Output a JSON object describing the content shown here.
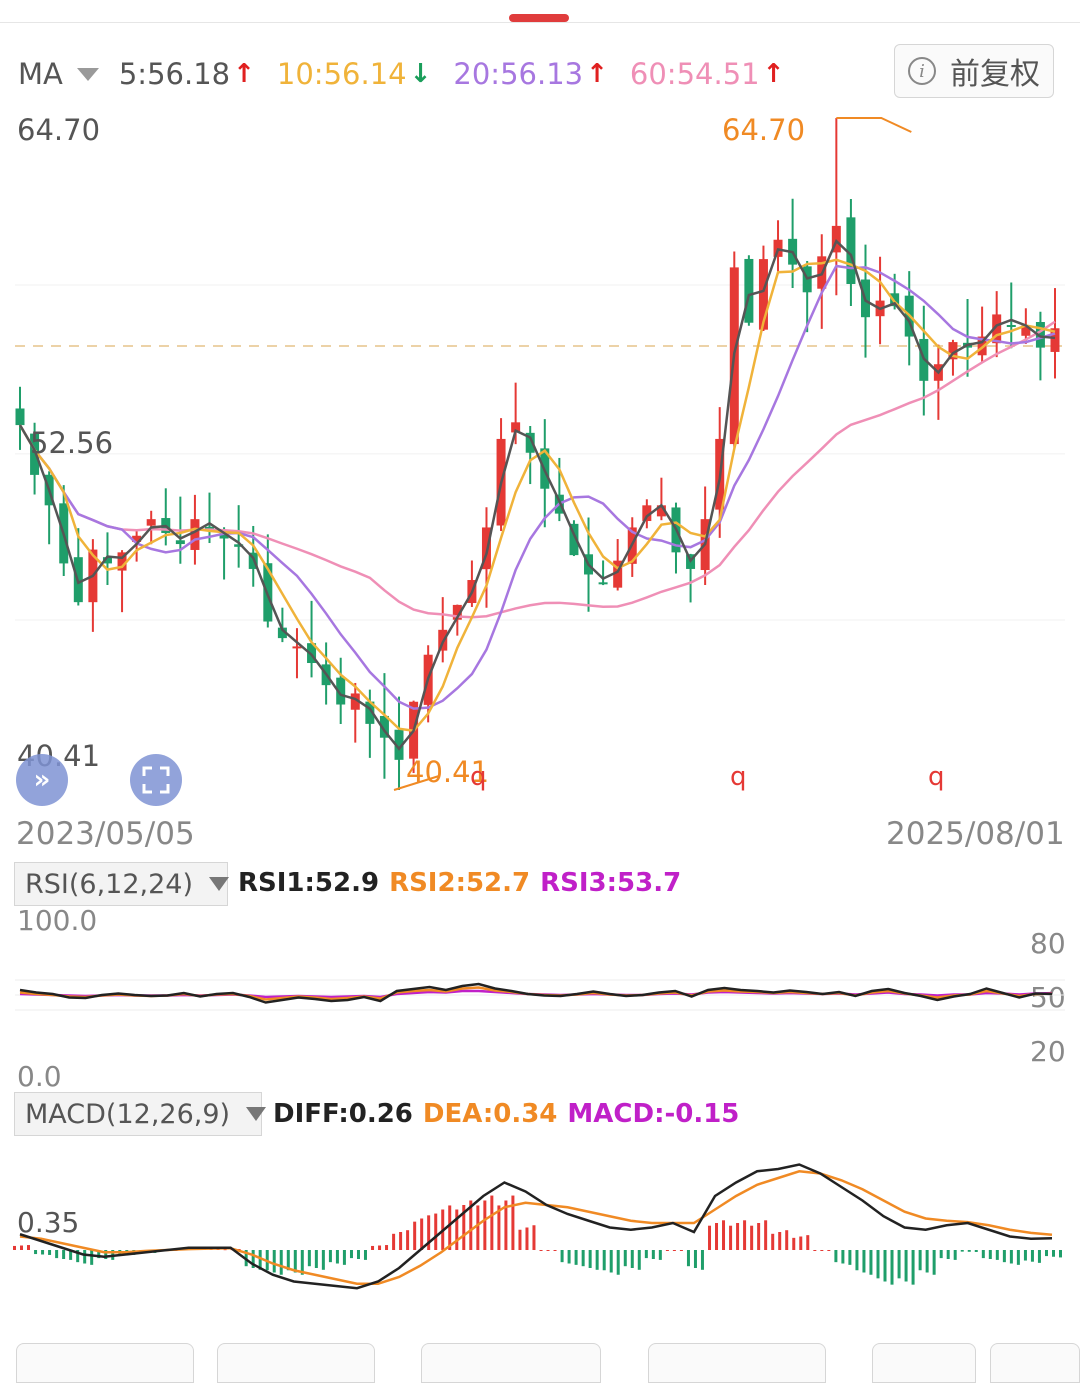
{
  "ma_bar": {
    "label": "MA",
    "items": [
      {
        "text": "5:56.18",
        "color": "#555555",
        "arrow": "↑",
        "arrow_color": "#e02020"
      },
      {
        "text": "10:56.14",
        "color": "#f0b33a",
        "arrow": "↓",
        "arrow_color": "#1a9e5a"
      },
      {
        "text": "20:56.13",
        "color": "#a777e0",
        "arrow": "↑",
        "arrow_color": "#e02020"
      },
      {
        "text": "60:54.51",
        "color": "#ef8fb6",
        "arrow": "↑",
        "arrow_color": "#e02020"
      }
    ],
    "adjust_button": "前复权",
    "info_icon": "i"
  },
  "price_axis": {
    "top": "64.70",
    "mid": "52.56",
    "bottom": "40.41"
  },
  "annotations": {
    "high": "64.70",
    "low": "40.41",
    "markers": [
      "q",
      "q",
      "q"
    ]
  },
  "dates": {
    "start": "2023/05/05",
    "end": "2025/08/01"
  },
  "rsi": {
    "button": "RSI(6,12,24)",
    "values": [
      {
        "text": "RSI1:52.9",
        "color": "#222222"
      },
      {
        "text": "RSI2:52.7",
        "color": "#f08a24"
      },
      {
        "text": "RSI3:53.7",
        "color": "#c020c8"
      }
    ],
    "axis_top": "100.0",
    "axis_bottom": "0.0",
    "levels": [
      "80",
      "50",
      "20"
    ]
  },
  "macd": {
    "button": "MACD(12,26,9)",
    "values": [
      {
        "text": "DIFF:0.26",
        "color": "#222222"
      },
      {
        "text": "DEA:0.34",
        "color": "#f08a24"
      },
      {
        "text": "MACD:-0.15",
        "color": "#c020c8"
      }
    ],
    "axis_label": "0.35"
  },
  "colors": {
    "up": "#e53935",
    "down": "#1f9e6a",
    "ma5": "#555555",
    "ma10": "#f0b33a",
    "ma20": "#a777e0",
    "ma60": "#ef8fb6"
  },
  "chart_data": {
    "type": "candlestick",
    "price_range": [
      40.41,
      64.7
    ],
    "high": 64.7,
    "low": 40.41,
    "close_series_approx": [
      53.6,
      51.8,
      50.7,
      48.6,
      47.2,
      49.1,
      48.6,
      49.0,
      49.6,
      50.2,
      49.7,
      49.3,
      50.2,
      49.9,
      49.5,
      49.2,
      48.4,
      46.5,
      45.9,
      45.6,
      45.0,
      44.2,
      43.5,
      43.9,
      42.8,
      42.3,
      41.5,
      43.6,
      45.3,
      46.2,
      47.1,
      48.0,
      49.9,
      53.1,
      53.7,
      52.6,
      51.3,
      50.4,
      48.9,
      48.2,
      47.9,
      48.7,
      49.9,
      50.7,
      50.7,
      49.0,
      48.4,
      50.2,
      53.1,
      59.3,
      57.3,
      59.6,
      60.3,
      59.4,
      58.4,
      59.7,
      60.8,
      58.7,
      57.5,
      58.1,
      57.9,
      56.8,
      55.2,
      55.8,
      56.6,
      56.4,
      56.8,
      57.6,
      57.2,
      57.2,
      56.4,
      57.1
    ],
    "rsi_series": {
      "RSI1": [
        60,
        55,
        52,
        45,
        44,
        50,
        53,
        50,
        48,
        49,
        54,
        47,
        52,
        54,
        46,
        35,
        40,
        45,
        42,
        38,
        40,
        46,
        38,
        58,
        62,
        66,
        60,
        68,
        72,
        63,
        58,
        52,
        49,
        48,
        52,
        57,
        52,
        48,
        50,
        55,
        58,
        47,
        60,
        64,
        60,
        58,
        55,
        59,
        56,
        52,
        56,
        48,
        58,
        62,
        54,
        48,
        40,
        47,
        52,
        63,
        54,
        45,
        53,
        52
      ],
      "RSI2": [
        55,
        52,
        50,
        47,
        46,
        49,
        51,
        49,
        48,
        49,
        52,
        48,
        51,
        52,
        48,
        41,
        44,
        47,
        45,
        42,
        44,
        47,
        43,
        55,
        58,
        60,
        57,
        63,
        65,
        59,
        56,
        52,
        50,
        49,
        51,
        54,
        51,
        49,
        50,
        53,
        55,
        49,
        57,
        59,
        57,
        56,
        54,
        56,
        54,
        52,
        54,
        49,
        55,
        58,
        53,
        49,
        45,
        49,
        51,
        58,
        53,
        48,
        52,
        52.7
      ],
      "RSI3": [
        52,
        51,
        50,
        49,
        48,
        49,
        50,
        49,
        49,
        49,
        50,
        49,
        50,
        51,
        49,
        46,
        47,
        48,
        47,
        46,
        47,
        48,
        46,
        52,
        54,
        56,
        55,
        58,
        58,
        56,
        54,
        52,
        51,
        50,
        51,
        52,
        51,
        50,
        50,
        52,
        53,
        51,
        55,
        56,
        55,
        54,
        53,
        54,
        53,
        52,
        53,
        51,
        53,
        55,
        52,
        51,
        49,
        51,
        51,
        54,
        53,
        51,
        53,
        53.7
      ]
    },
    "macd_series": {
      "DIFF": [
        0.35,
        0.2,
        0.05,
        -0.1,
        -0.15,
        -0.1,
        -0.05,
        0.0,
        0.05,
        0.05,
        0.05,
        -0.3,
        -0.55,
        -0.7,
        -0.75,
        -0.8,
        -0.85,
        -0.7,
        -0.4,
        0.0,
        0.4,
        0.8,
        1.2,
        1.5,
        1.3,
        1.0,
        0.8,
        0.65,
        0.5,
        0.45,
        0.5,
        0.6,
        0.4,
        1.2,
        1.5,
        1.75,
        1.8,
        1.9,
        1.7,
        1.4,
        1.1,
        0.75,
        0.5,
        0.45,
        0.55,
        0.6,
        0.45,
        0.3,
        0.25,
        0.26
      ],
      "DEA": [
        0.3,
        0.25,
        0.15,
        0.05,
        -0.05,
        -0.05,
        -0.02,
        0.0,
        0.02,
        0.03,
        0.04,
        -0.1,
        -0.3,
        -0.45,
        -0.55,
        -0.65,
        -0.75,
        -0.75,
        -0.6,
        -0.35,
        -0.05,
        0.3,
        0.65,
        0.95,
        1.05,
        1.0,
        0.95,
        0.85,
        0.75,
        0.65,
        0.6,
        0.6,
        0.6,
        0.9,
        1.2,
        1.45,
        1.6,
        1.75,
        1.7,
        1.55,
        1.35,
        1.1,
        0.85,
        0.7,
        0.65,
        0.62,
        0.55,
        0.45,
        0.38,
        0.34
      ],
      "MACD": [
        0.1,
        -0.1,
        -0.2,
        -0.3,
        -0.2,
        -0.1,
        -0.06,
        0.0,
        0.06,
        0.04,
        0.02,
        -0.4,
        -0.5,
        -0.5,
        -0.4,
        -0.3,
        -0.2,
        0.1,
        0.4,
        0.7,
        0.9,
        1.0,
        1.1,
        1.1,
        0.5,
        0.0,
        -0.3,
        -0.4,
        -0.5,
        -0.4,
        -0.2,
        0.0,
        -0.4,
        0.6,
        0.6,
        0.6,
        0.4,
        0.3,
        0.0,
        -0.3,
        -0.5,
        -0.7,
        -0.7,
        -0.5,
        -0.2,
        -0.04,
        -0.2,
        -0.3,
        -0.26,
        -0.15
      ]
    }
  },
  "bottom_tabs": [
    "",
    "",
    "",
    "",
    "",
    ""
  ]
}
